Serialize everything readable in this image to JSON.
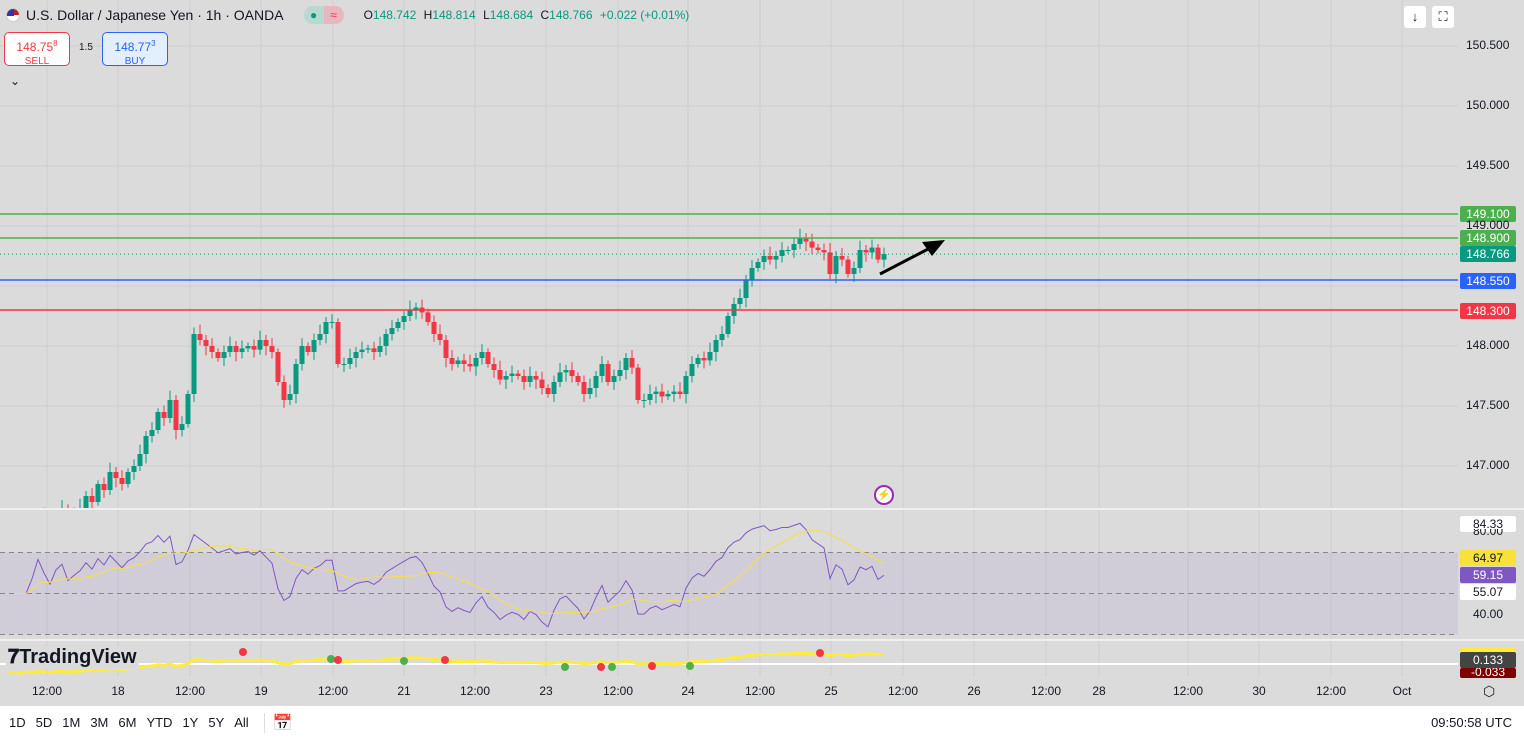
{
  "header": {
    "symbol": "U.S. Dollar / Japanese Yen · 1h · OANDA",
    "open_label": "O",
    "open": "148.742",
    "high_label": "H",
    "high": "148.814",
    "low_label": "L",
    "low": "148.684",
    "close_label": "C",
    "close": "148.766",
    "change": "+0.022 (+0.01%)",
    "status_dot": "●",
    "status_wave": "≈"
  },
  "trade": {
    "sell_price": "148.75",
    "sell_sup": "8",
    "sell_label": "SELL",
    "spread": "1.5",
    "buy_price": "148.77",
    "buy_sup": "3",
    "buy_label": "BUY"
  },
  "price_axis": [
    "150.500",
    "150.000",
    "149.500",
    "149.000",
    "148.000",
    "147.500",
    "147.000"
  ],
  "price_levels": [
    {
      "value": "149.100",
      "color": "#4caf50"
    },
    {
      "value": "148.900",
      "color": "#4caf50"
    },
    {
      "value": "148.766",
      "color": "#089981"
    },
    {
      "value": "148.550",
      "color": "#2962ff"
    },
    {
      "value": "148.300",
      "color": "#f23645"
    }
  ],
  "rsi_labels": {
    "high": "84.33",
    "upper": "80.00",
    "ma": "64.97",
    "rsi": "59.15",
    "mid": "55.07",
    "lower": "40.00"
  },
  "osc_labels": {
    "a": "0.133",
    "b": "-0.033"
  },
  "time_axis": [
    "12:00",
    "18",
    "12:00",
    "19",
    "12:00",
    "21",
    "12:00",
    "23",
    "12:00",
    "24",
    "12:00",
    "25",
    "12:00",
    "26",
    "12:00",
    "28",
    "12:00",
    "30",
    "12:00",
    "Oct"
  ],
  "closes": [
    146.45,
    146.5,
    146.4,
    146.55,
    146.5,
    146.6,
    146.55,
    146.5,
    146.6,
    146.65,
    146.55,
    146.6,
    146.65,
    146.75,
    146.7,
    146.85,
    146.8,
    146.95,
    146.9,
    146.85,
    146.95,
    147.0,
    147.1,
    147.25,
    147.3,
    147.45,
    147.4,
    147.55,
    147.3,
    147.35,
    147.6,
    148.1,
    148.05,
    148.0,
    147.95,
    147.9,
    147.95,
    148.0,
    147.95,
    147.98,
    148.0,
    147.97,
    148.05,
    148.0,
    147.95,
    147.7,
    147.55,
    147.6,
    147.85,
    148.0,
    147.95,
    148.05,
    148.1,
    148.2,
    148.2,
    147.85,
    147.85,
    147.9,
    147.95,
    147.97,
    147.98,
    147.95,
    148.0,
    148.1,
    148.15,
    148.2,
    148.25,
    148.3,
    148.32,
    148.28,
    148.2,
    148.1,
    148.05,
    147.9,
    147.85,
    147.88,
    147.85,
    147.83,
    147.9,
    147.95,
    147.85,
    147.8,
    147.72,
    147.75,
    147.77,
    147.75,
    147.7,
    147.75,
    147.72,
    147.65,
    147.6,
    147.7,
    147.78,
    147.8,
    147.75,
    147.7,
    147.6,
    147.65,
    147.75,
    147.85,
    147.7,
    147.75,
    147.8,
    147.9,
    147.82,
    147.55,
    147.55,
    147.6,
    147.62,
    147.58,
    147.6,
    147.62,
    147.6,
    147.75,
    147.85,
    147.9,
    147.88,
    147.95,
    148.05,
    148.1,
    148.25,
    148.35,
    148.4,
    148.55,
    148.65,
    148.7,
    148.75,
    148.72,
    148.75,
    148.8,
    148.8,
    148.85,
    148.9,
    148.87,
    148.82,
    148.8,
    148.78,
    148.6,
    148.75,
    148.72,
    148.6,
    148.65,
    148.8,
    148.78,
    148.82,
    148.72,
    148.766
  ],
  "colors": {
    "up": "#089981",
    "down": "#f23645",
    "rsi": "#7e57c2",
    "rsi_ma": "#f7e13a"
  },
  "logo": "TradingView",
  "ranges": [
    "1D",
    "5D",
    "1M",
    "3M",
    "6M",
    "YTD",
    "1Y",
    "5Y",
    "All"
  ],
  "clock": "09:50:58 UTC"
}
